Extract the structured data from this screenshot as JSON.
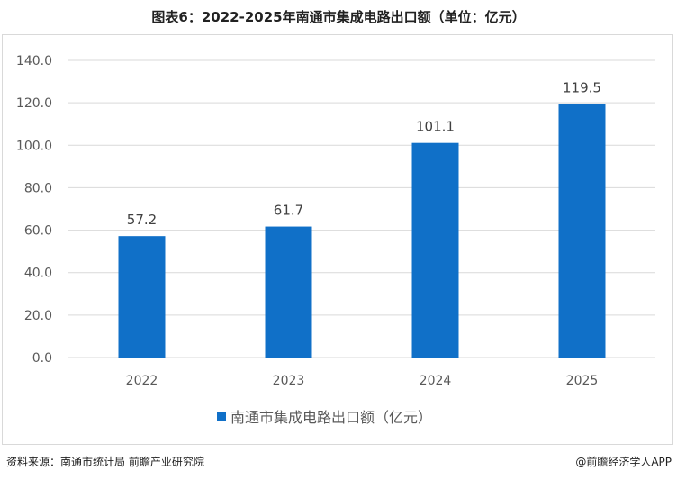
{
  "title": "图表6：2022-2025年南通市集成电路出口额（单位：亿元）",
  "source": "资料来源：南通市统计局 前瞻产业研究院",
  "brand": "@前瞻经济学人APP",
  "colors": {
    "bar": "#1070c8",
    "grid": "#d9d9d9",
    "text": "#595959"
  },
  "chart_data": {
    "type": "bar",
    "categories": [
      "2022",
      "2023",
      "2024",
      "2025"
    ],
    "series": [
      {
        "name": "南通市集成电路出口额（亿元）",
        "values": [
          57.2,
          61.7,
          101.1,
          119.5
        ]
      }
    ],
    "ylim": [
      0,
      140
    ],
    "yticks": [
      "0.0",
      "20.0",
      "40.0",
      "60.0",
      "80.0",
      "100.0",
      "120.0",
      "140.0"
    ],
    "data_labels": [
      "57.2",
      "61.7",
      "101.1",
      "119.5"
    ],
    "legend_position": "bottom",
    "grid": true
  }
}
